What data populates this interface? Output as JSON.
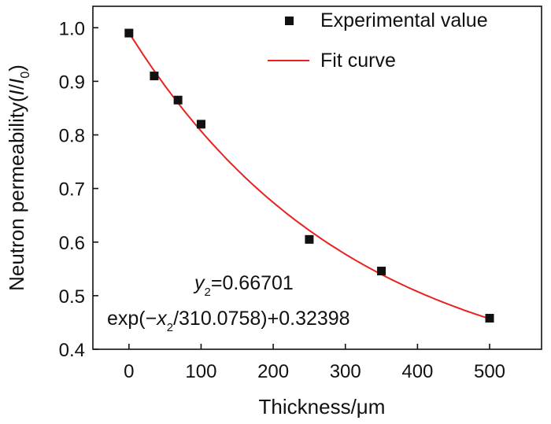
{
  "chart_data": {
    "type": "scatter",
    "xlabel": "Thickness/μm",
    "ylabel_parts": [
      "Neutron permeability(",
      "I",
      "/",
      "I",
      "0",
      ")"
    ],
    "xlim": [
      -50,
      572
    ],
    "ylim": [
      0.4,
      1.04
    ],
    "xticks": [
      0,
      100,
      200,
      300,
      400,
      500
    ],
    "xtick_labels": [
      "0",
      "100",
      "200",
      "300",
      "400",
      "500"
    ],
    "yticks": [
      0.4,
      0.5,
      0.6,
      0.7,
      0.8,
      0.9,
      1.0
    ],
    "ytick_labels": [
      "0.4",
      "0.5",
      "0.6",
      "0.7",
      "0.8",
      "0.9",
      "1.0"
    ],
    "grid": false,
    "legend": {
      "placement": "top-right",
      "entries": [
        "Experimental value",
        "Fit curve"
      ]
    },
    "series": [
      {
        "name": "Experimental value",
        "kind": "scatter",
        "color": "#111111",
        "x": [
          0,
          35,
          68,
          100,
          250,
          350,
          500
        ],
        "y": [
          0.99,
          0.91,
          0.865,
          0.82,
          0.605,
          0.546,
          0.458
        ]
      },
      {
        "name": "Fit curve",
        "kind": "line",
        "color": "#e8231f",
        "fit": {
          "A": 0.66701,
          "t": 310.0758,
          "y0": 0.32398
        },
        "x_range": [
          0,
          500
        ]
      }
    ],
    "annotation": {
      "line1": {
        "y": "y",
        "sub": "2",
        "rest": "=0.66701"
      },
      "line2": {
        "pre": "exp(−",
        "x": "x",
        "sub": "2",
        "rest": "/310.0758)+0.32398"
      }
    }
  }
}
